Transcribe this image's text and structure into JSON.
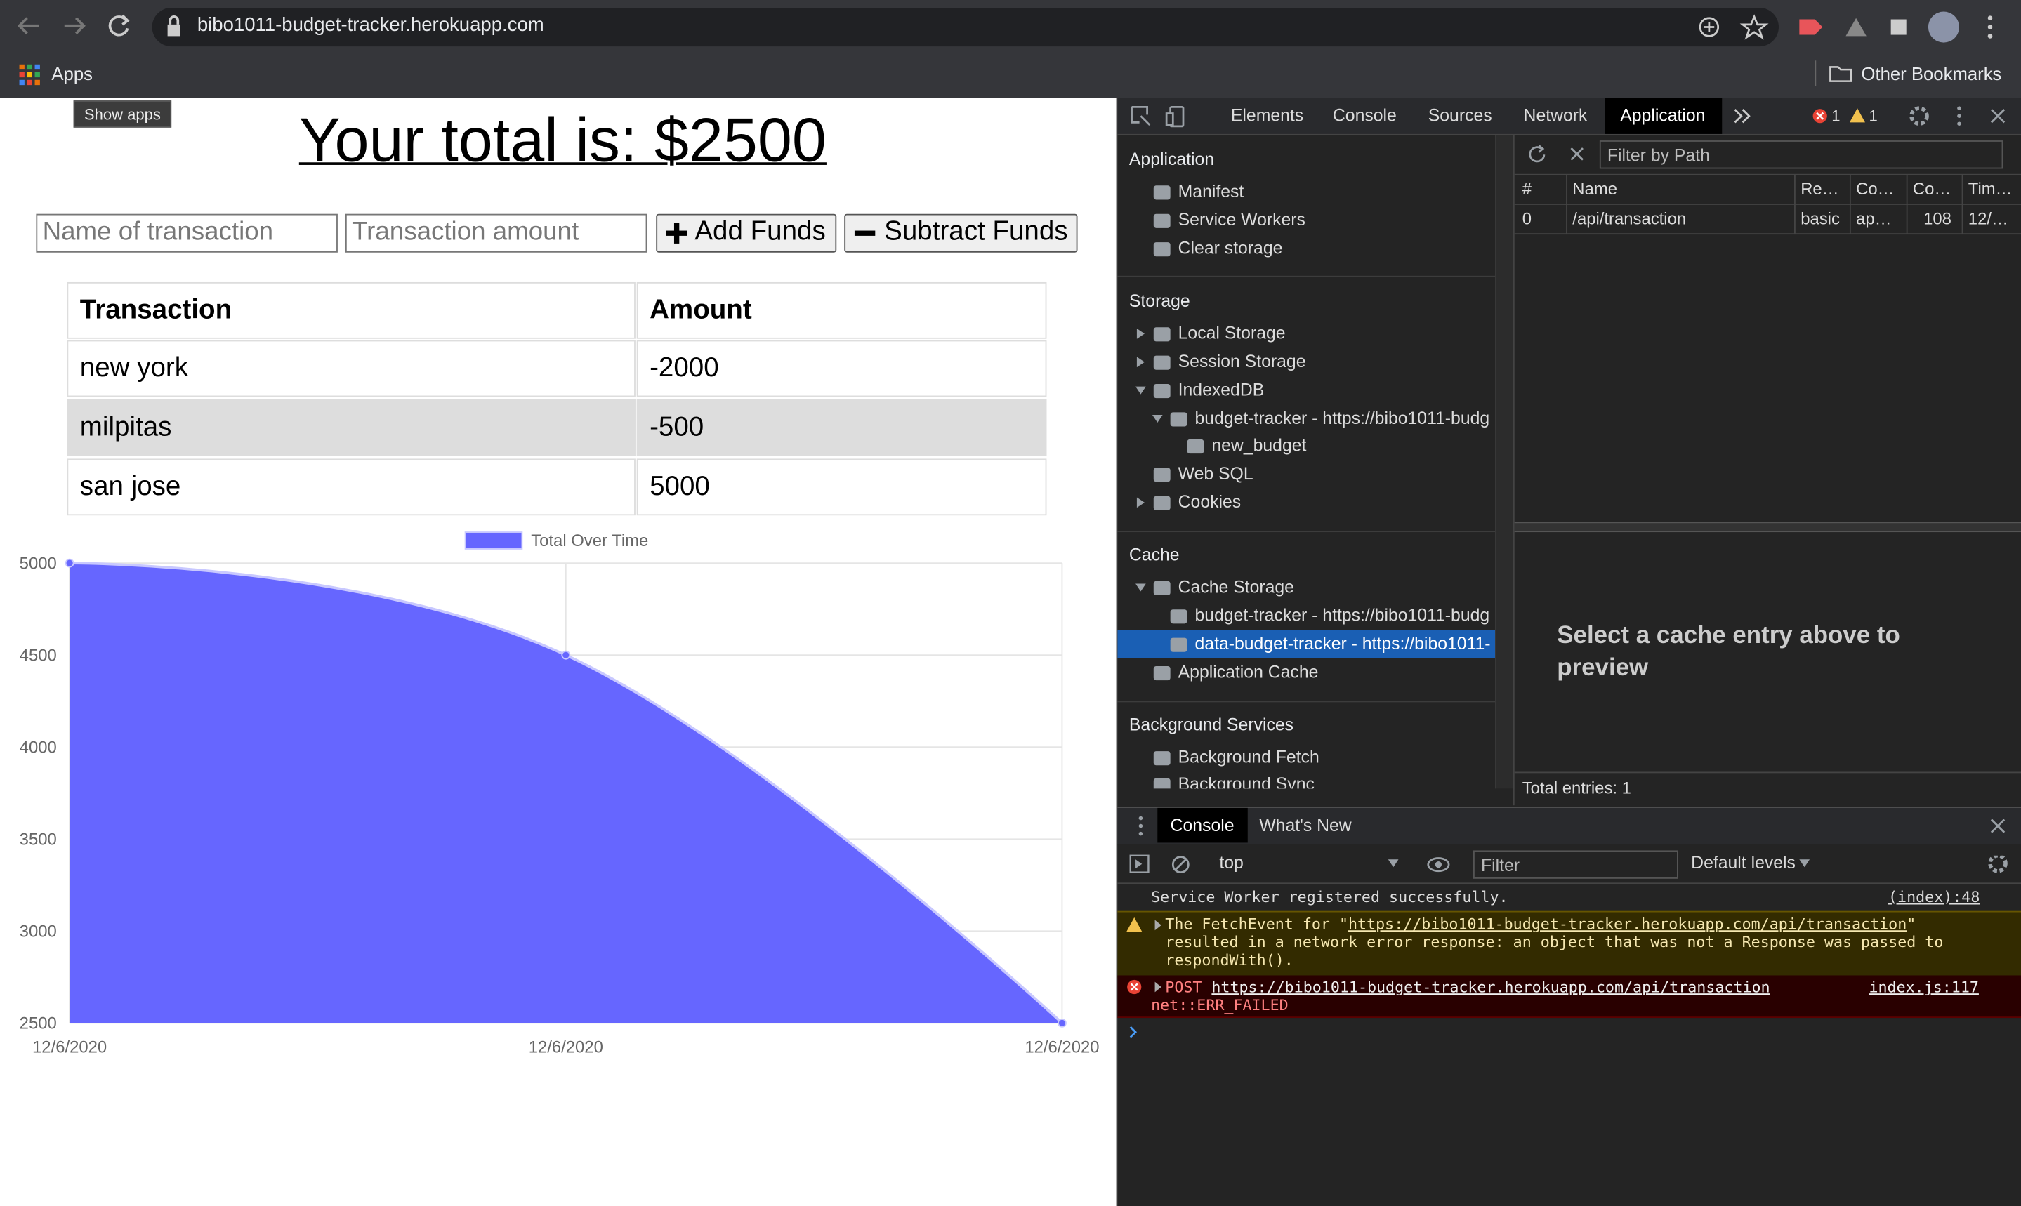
{
  "browser": {
    "url": "bibo1011-budget-tracker.herokuapp.com",
    "apps": "Apps",
    "other_bookmarks": "Other Bookmarks",
    "tooltip": "Show apps"
  },
  "page": {
    "title": "Your total is: $2500",
    "inputs": [
      "Name of transaction",
      "Transaction amount"
    ],
    "buttons": [
      "Add Funds",
      "Subtract Funds"
    ],
    "table": {
      "header": [
        "Transaction",
        "Amount"
      ],
      "rows": [
        [
          "new york",
          -2000
        ],
        [
          "milpitas",
          -500
        ],
        [
          "san jose",
          5000
        ]
      ]
    }
  },
  "chart_data": {
    "type": "area",
    "categories": [
      "12/6/2020",
      "12/6/2020",
      "12/6/2020"
    ],
    "series": [
      {
        "name": "Total Over Time",
        "color": "#6666ff",
        "values": [
          5000,
          4500,
          2500
        ]
      }
    ],
    "ylim": [
      2500,
      5000
    ],
    "yticks": [
      2500,
      3000,
      3500,
      4000,
      4500,
      5000
    ],
    "grid": true,
    "legend": "top"
  },
  "devtools": {
    "tabs": [
      "Elements",
      "Console",
      "Sources",
      "Network",
      "Application"
    ],
    "errors": 1,
    "warnings": 1,
    "sidebar": [
      {
        "heading": "Application",
        "items": [
          "Manifest",
          "Service Workers",
          "Clear storage"
        ]
      },
      {
        "heading": "Storage",
        "items": [
          "Local Storage",
          "Session Storage",
          "IndexedDB",
          "budget-tracker - https://bibo1011-budg",
          "new_budget",
          "Web SQL",
          "Cookies"
        ]
      },
      {
        "heading": "Cache",
        "items": [
          "Cache Storage",
          "budget-tracker - https://bibo1011-budg",
          "data-budget-tracker - https://bibo1011-",
          "Application Cache"
        ]
      },
      {
        "heading": "Background Services",
        "items": [
          "Background Fetch",
          "Background Sync"
        ]
      }
    ],
    "filter": "Filter by Path",
    "columns": [
      "#",
      "Name",
      "Re…",
      "Co…",
      "Co…",
      "Tim…"
    ],
    "row": [
      0,
      "/api/transaction",
      "basic",
      "ap…",
      108,
      "12/…"
    ],
    "preview": "Select a cache entry above to preview",
    "total": "Total entries: 1",
    "drawer_tabs": [
      "Console",
      "What's New"
    ],
    "context": "top",
    "console_filter": "Filter",
    "levels": "Default levels",
    "messages": [
      {
        "text": "Service Worker registered successfully.",
        "source": "(index):48"
      },
      {
        "before": "The FetchEvent for \"",
        "url": "https://bibo1011-budget-tracker.herokuapp.com/api/transaction",
        "after": "\" resulted in a network error response: an object that was not a Response was passed to respondWith()."
      },
      {
        "method": "POST",
        "url": "https://bibo1011-budget-tracker.herokuapp.com/api/transaction",
        "source": "index.js:117",
        "detail": "net::ERR_FAILED"
      }
    ]
  }
}
